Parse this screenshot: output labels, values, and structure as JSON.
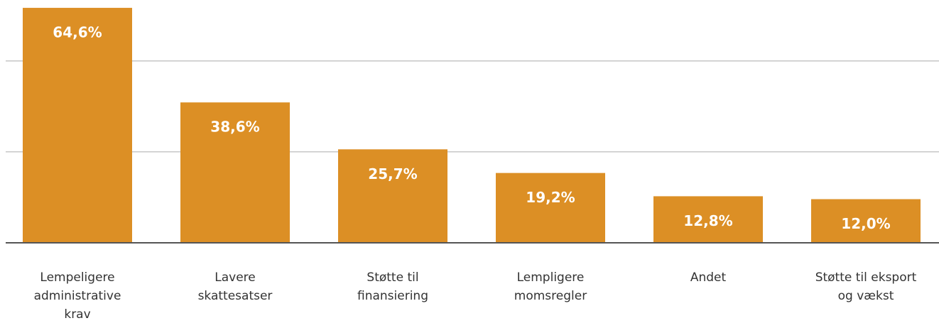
{
  "chart_data": {
    "type": "bar",
    "categories": [
      [
        "Lempeligere",
        "administrative",
        "krav"
      ],
      [
        "Lavere",
        "skattesatser"
      ],
      [
        "Støtte til",
        "finansiering"
      ],
      [
        "Lempligere",
        "momsregler"
      ],
      [
        "Andet"
      ],
      [
        "Støtte til eksport",
        "og vækst"
      ]
    ],
    "values": [
      64.6,
      38.6,
      25.7,
      19.2,
      12.8,
      12.0
    ],
    "value_labels": [
      "64,6%",
      "38,6%",
      "25,7%",
      "19,2%",
      "12,8%",
      "12,0%"
    ],
    "color": "#dc8f25",
    "ylim": [
      0,
      65
    ],
    "yticks": [
      0,
      25,
      50
    ],
    "grid": true
  }
}
